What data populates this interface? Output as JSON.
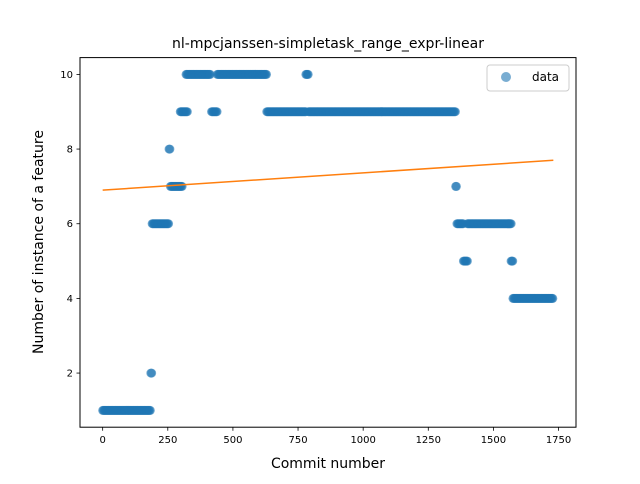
{
  "chart_data": {
    "type": "scatter",
    "title": "nl-mpcjanssen-simpletask_range_expr-linear",
    "xlabel": "Commit number",
    "ylabel": "Number of instance of a feature",
    "xlim": [
      -87,
      1817
    ],
    "ylim": [
      0.55,
      10.45
    ],
    "xticks": [
      0,
      250,
      500,
      750,
      1000,
      1250,
      1500,
      1750
    ],
    "yticks": [
      2,
      4,
      6,
      8,
      10
    ],
    "grid": false,
    "legend": {
      "position": "top-right",
      "entries": [
        "data"
      ]
    },
    "colors": {
      "points": "#1f77b4",
      "fit": "#ff7f0e"
    },
    "segments": [
      {
        "x_start": 0,
        "x_end": 185,
        "y": 1
      },
      {
        "x_start": 185,
        "x_end": 190,
        "y": 2
      },
      {
        "x_start": 190,
        "x_end": 255,
        "y": 6
      },
      {
        "x_start": 255,
        "x_end": 260,
        "y": 8
      },
      {
        "x_start": 260,
        "x_end": 305,
        "y": 7
      },
      {
        "x_start": 298,
        "x_end": 325,
        "y": 9
      },
      {
        "x_start": 320,
        "x_end": 415,
        "y": 10
      },
      {
        "x_start": 418,
        "x_end": 440,
        "y": 9
      },
      {
        "x_start": 440,
        "x_end": 630,
        "y": 10
      },
      {
        "x_start": 630,
        "x_end": 780,
        "y": 9
      },
      {
        "x_start": 780,
        "x_end": 790,
        "y": 10
      },
      {
        "x_start": 790,
        "x_end": 1355,
        "y": 9
      },
      {
        "x_start": 1355,
        "x_end": 1360,
        "y": 7
      },
      {
        "x_start": 1360,
        "x_end": 1385,
        "y": 6
      },
      {
        "x_start": 1385,
        "x_end": 1400,
        "y": 5
      },
      {
        "x_start": 1400,
        "x_end": 1570,
        "y": 6
      },
      {
        "x_start": 1568,
        "x_end": 1575,
        "y": 5
      },
      {
        "x_start": 1575,
        "x_end": 1730,
        "y": 4
      }
    ],
    "fit_line": {
      "x": [
        0,
        1730
      ],
      "y": [
        6.9,
        7.7
      ]
    }
  }
}
